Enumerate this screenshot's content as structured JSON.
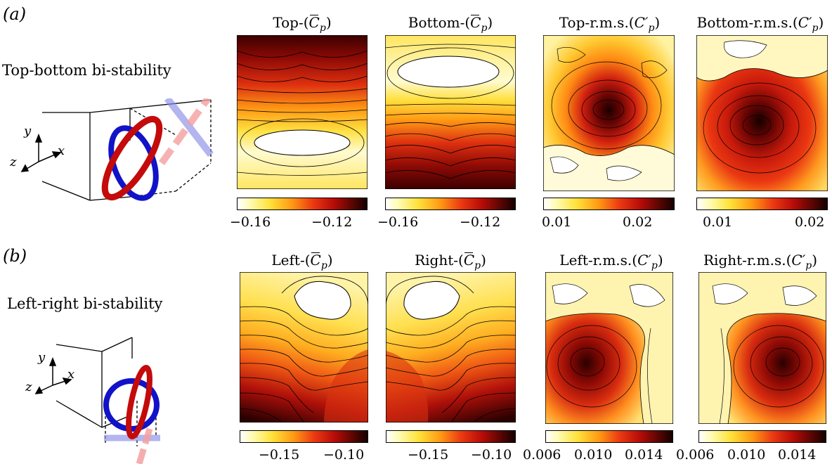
{
  "figure": {
    "row_a": {
      "panel_label": "a",
      "title": "Top-bottom bi-stability",
      "axis_labels": {
        "y": "y",
        "x": "x",
        "z": "z"
      },
      "maps": [
        {
          "name_prefix": "Top-(",
          "symbol": "C",
          "sub": "p",
          "suffix": ")",
          "kind": "mean",
          "ticks": [
            "−0.16",
            "−0.12"
          ]
        },
        {
          "name_prefix": "Bottom-(",
          "symbol": "C",
          "sub": "p",
          "suffix": ")",
          "kind": "mean",
          "ticks": [
            "−0.16",
            "−0.12"
          ]
        },
        {
          "name_prefix": "Top-r.m.s.(",
          "symbol": "C′",
          "sub": "p",
          "suffix": ")",
          "kind": "rms",
          "ticks": [
            "0.01",
            "0.02"
          ]
        },
        {
          "name_prefix": "Bottom-r.m.s.(",
          "symbol": "C′",
          "sub": "p",
          "suffix": ")",
          "kind": "rms",
          "ticks": [
            "0.01",
            "0.02"
          ]
        }
      ]
    },
    "row_b": {
      "panel_label": "b",
      "title": "Left-right bi-stability",
      "axis_labels": {
        "y": "y",
        "x": "x",
        "z": "z"
      },
      "maps": [
        {
          "name_prefix": "Left-(",
          "symbol": "C",
          "sub": "p",
          "suffix": ")",
          "kind": "mean",
          "ticks": [
            "−0.15",
            "−0.10"
          ]
        },
        {
          "name_prefix": "Right-(",
          "symbol": "C",
          "sub": "p",
          "suffix": ")",
          "kind": "mean",
          "ticks": [
            "−0.15",
            "−0.10"
          ]
        },
        {
          "name_prefix": "Left-r.m.s.(",
          "symbol": "C′",
          "sub": "p",
          "suffix": ")",
          "kind": "rms",
          "ticks": [
            "0.006",
            "0.010",
            "0.014"
          ]
        },
        {
          "name_prefix": "Right-r.m.s.(",
          "symbol": "C′",
          "sub": "p",
          "suffix": ")",
          "kind": "rms",
          "ticks": [
            "0.006",
            "0.010",
            "0.014"
          ]
        }
      ]
    },
    "colormap": [
      "#ffffff",
      "#fffbb0",
      "#ffe23a",
      "#ff9a14",
      "#ec3a12",
      "#b80c08",
      "#5e0602",
      "#150000"
    ]
  }
}
